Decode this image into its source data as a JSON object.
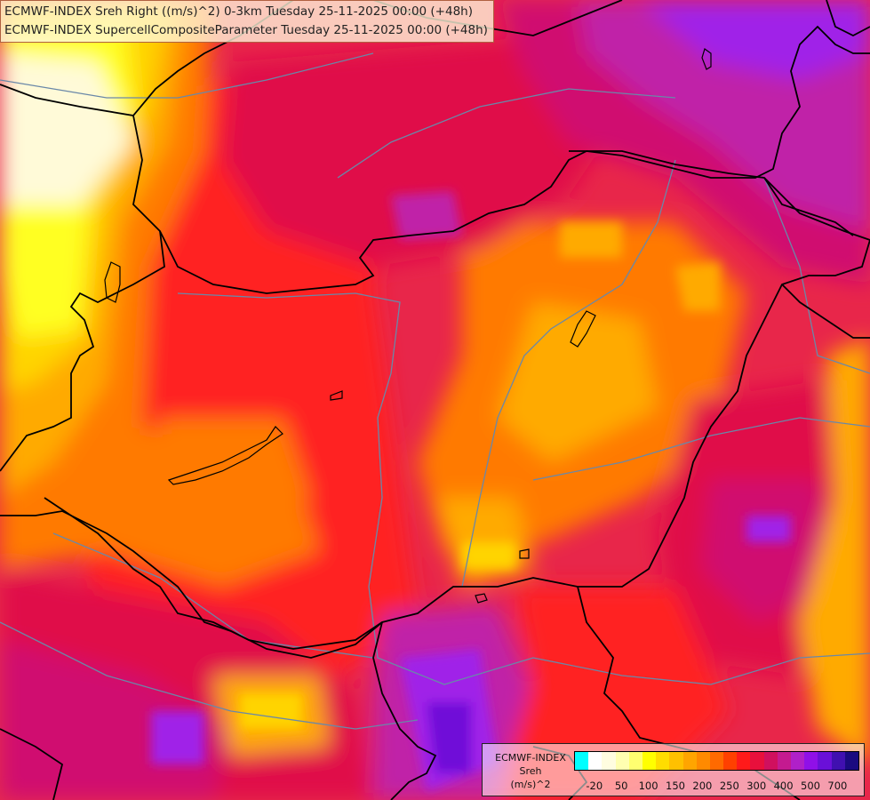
{
  "header": {
    "title_line1": "ECMWF-INDEX Sreh Right ((m/s)^2) 0-3km Tuesday 25-11-2025 00:00 (+48h)",
    "title_line2": "ECMWF-INDEX SupercellCompositeParameter Tuesday 25-11-2025 00:00 (+48h)"
  },
  "legend": {
    "line1": "ECMWF-INDEX",
    "line2": "Sreh",
    "line3": "(m/s)^2",
    "colors": [
      "#00ffff",
      "#ffffff",
      "#fffde0",
      "#ffffb0",
      "#ffff70",
      "#ffff00",
      "#ffdd00",
      "#ffc000",
      "#ffa500",
      "#ff8a00",
      "#ff6a00",
      "#ff4000",
      "#ff1a1a",
      "#e8103c",
      "#d0105e",
      "#c41a90",
      "#b020c8",
      "#9010e8",
      "#6a10d8",
      "#4010b0",
      "#1a0a80"
    ],
    "ticks": [
      "-20",
      "50",
      "100",
      "150",
      "200",
      "250",
      "300",
      "400",
      "500",
      "700"
    ]
  },
  "map": {
    "colors": {
      "base": "#e8264a",
      "pale": "#fffad8",
      "yellow": "#ffff20",
      "gold": "#ffd400",
      "amber": "#ffaa00",
      "orange": "#ff7a00",
      "red_orange": "#ff4a10",
      "red": "#ff2020",
      "crimson": "#e01048",
      "magenta": "#d01070",
      "purple_magenta": "#c020a8",
      "violet": "#a020e8",
      "deep_violet": "#7010d8",
      "border": "#000000",
      "river": "#6a88a8"
    }
  }
}
